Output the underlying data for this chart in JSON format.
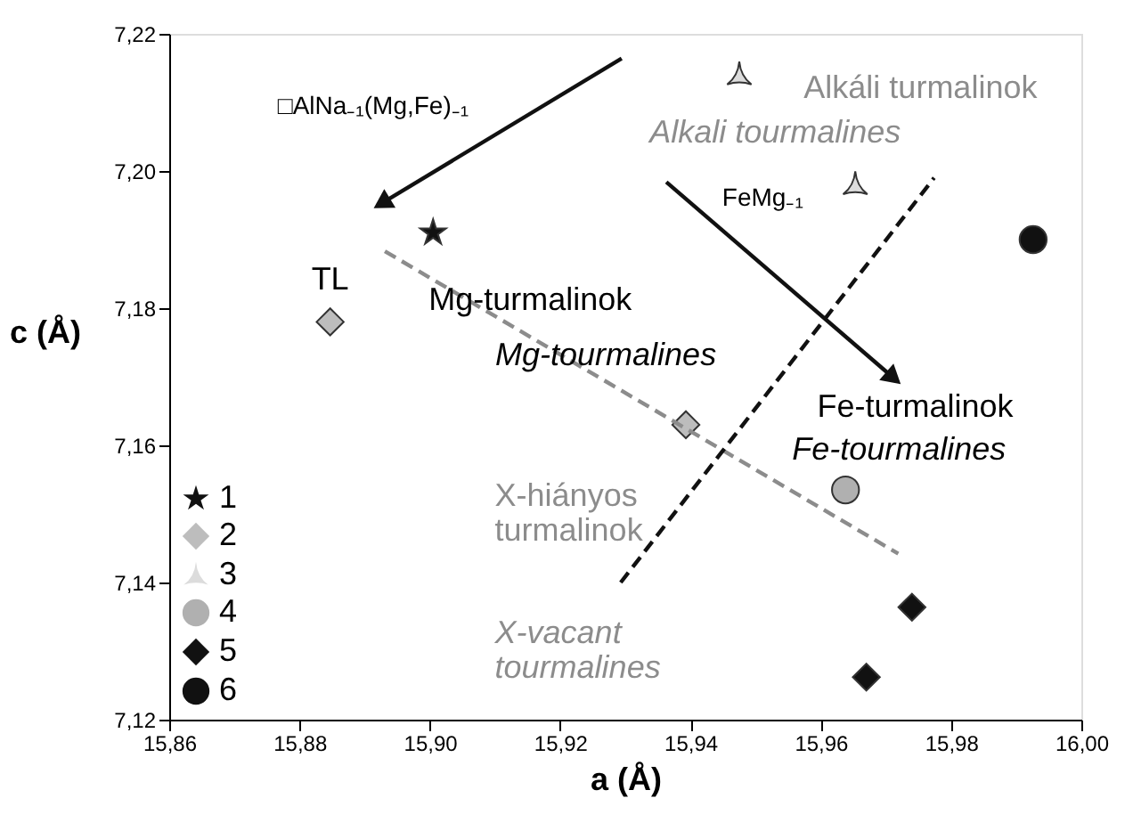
{
  "chart_data": {
    "type": "scatter",
    "xlabel": "a (Å)",
    "ylabel": "c (Å)",
    "xlim": [
      15.86,
      16.0
    ],
    "ylim": [
      7.12,
      7.22
    ],
    "xticks": [
      {
        "value": 15.86,
        "label": "15,86"
      },
      {
        "value": 15.88,
        "label": "15,88"
      },
      {
        "value": 15.9,
        "label": "15,90"
      },
      {
        "value": 15.92,
        "label": "15,92"
      },
      {
        "value": 15.94,
        "label": "15,94"
      },
      {
        "value": 15.96,
        "label": "15,96"
      },
      {
        "value": 15.98,
        "label": "15,98"
      },
      {
        "value": 16.0,
        "label": "16,00"
      }
    ],
    "yticks": [
      {
        "value": 7.12,
        "label": "7,12"
      },
      {
        "value": 7.14,
        "label": "7,14"
      },
      {
        "value": 7.16,
        "label": "7,16"
      },
      {
        "value": 7.18,
        "label": "7,18"
      },
      {
        "value": 7.2,
        "label": "7,20"
      },
      {
        "value": 7.22,
        "label": "7,22"
      }
    ],
    "grid": false,
    "legend": "bottom left",
    "series": [
      {
        "name": "1",
        "marker": "star",
        "color": "#111111",
        "x": [
          15.9005
        ],
        "values": [
          7.191
        ]
      },
      {
        "name": "2",
        "marker": "diamond",
        "color": "#bdbdbd",
        "x": [
          15.8847,
          15.9393
        ],
        "values": [
          7.178,
          7.163
        ]
      },
      {
        "name": "3",
        "marker": "triangle",
        "color": "#dcdcdc",
        "x": [
          15.9475,
          15.9653
        ],
        "values": [
          7.214,
          7.198
        ]
      },
      {
        "name": "4",
        "marker": "circle",
        "color": "#b0b0b0",
        "x": [
          15.9638
        ],
        "values": [
          7.1535
        ]
      },
      {
        "name": "5",
        "marker": "diamond",
        "color": "#111111",
        "x": [
          15.974,
          15.967
        ],
        "values": [
          7.1364,
          7.1262
        ]
      },
      {
        "name": "6",
        "marker": "circle",
        "color": "#111111",
        "x": [
          15.9926
        ],
        "values": [
          7.19
        ]
      },
      {
        "type": "line",
        "line_style": "dashed",
        "color": "#8c8c8c",
        "x": [
          15.8931,
          15.9719
        ],
        "values": [
          7.1883,
          7.1442
        ]
      },
      {
        "type": "line",
        "line_style": "dashed",
        "color": "#111111",
        "x": [
          15.9293,
          15.9774
        ],
        "values": [
          7.14,
          7.199
        ]
      }
    ],
    "annotations": [
      "□AlNa₋₁(Mg,Fe)₋₁",
      "Alkáli turmalinok",
      "Alkali tourmalines",
      "FeMg₋₁",
      "TL",
      "Mg-turmalinok",
      "Mg-tourmalines",
      "Fe-turmalinok",
      "Fe-tourmalines",
      "X-hiányos\nturmalinok",
      "X-vacant\ntourmalines"
    ]
  }
}
